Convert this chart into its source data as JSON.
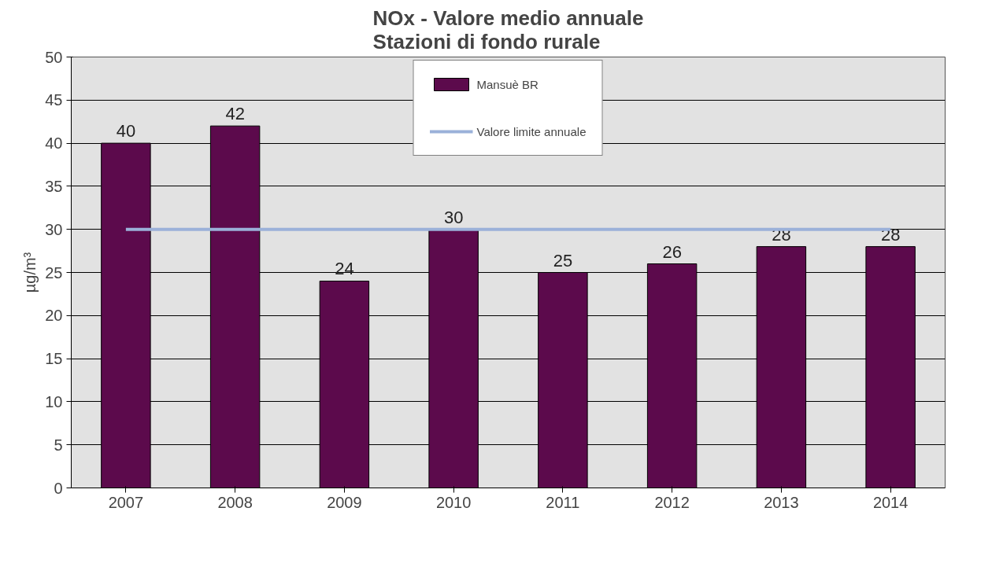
{
  "chart_data": {
    "type": "bar",
    "title": "NOx - Valore medio annuale\nStazioni di fondo rurale",
    "ylabel": "µg/m³",
    "categories": [
      "2007",
      "2008",
      "2009",
      "2010",
      "2011",
      "2012",
      "2013",
      "2014"
    ],
    "series": [
      {
        "name": "Mansuè BR",
        "color": "#5c0a4c",
        "values": [
          40,
          42,
          24,
          30,
          25,
          26,
          28,
          28
        ],
        "data_labels": true
      },
      {
        "name": "Valore limite annuale",
        "type": "line",
        "color": "#9bb1d9",
        "values": [
          30,
          30,
          30,
          30,
          30,
          30,
          30,
          30
        ]
      }
    ],
    "ylim": [
      0,
      50
    ],
    "yticks": [
      0,
      5,
      10,
      15,
      20,
      25,
      30,
      35,
      40,
      45,
      50
    ],
    "grid": "y",
    "legend": "top"
  }
}
